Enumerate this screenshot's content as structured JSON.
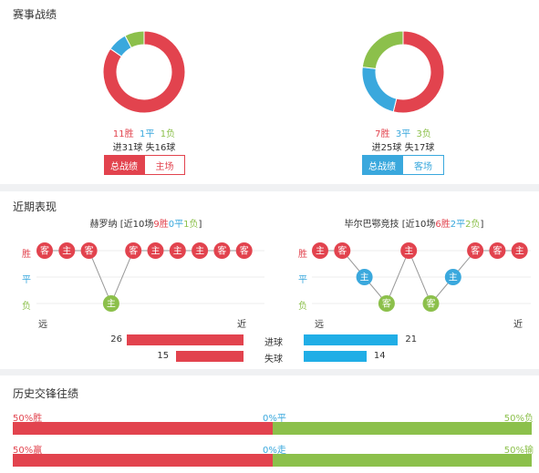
{
  "sections": {
    "record_title": "赛事战绩",
    "recent_title": "近期表现",
    "h2h_title": "历史交锋往绩"
  },
  "colors": {
    "win": "#e2434e",
    "draw": "#3aa8dd",
    "loss": "#8cc04b"
  },
  "record": {
    "home": {
      "win": "11胜",
      "draw": "1平",
      "loss": "1负",
      "win_n": 11,
      "draw_n": 1,
      "loss_n": 1,
      "goals": "进31球",
      "conceded": "失16球",
      "tab_total": "总战绩",
      "tab_venue": "主场"
    },
    "away": {
      "win": "7胜",
      "draw": "3平",
      "loss": "3负",
      "win_n": 7,
      "draw_n": 3,
      "loss_n": 3,
      "goals": "进25球",
      "conceded": "失17球",
      "tab_total": "总战绩",
      "tab_venue": "客场"
    }
  },
  "recent": {
    "row_labels": {
      "win": "胜",
      "draw": "平",
      "loss": "负"
    },
    "far": "远",
    "near": "近",
    "home": {
      "team": "赫罗纳",
      "summary_prefix": "[近10场",
      "w": "9胜",
      "d": "0平",
      "l": "1负",
      "summary_suffix": "]",
      "matches": [
        {
          "venue": "客",
          "result": "W"
        },
        {
          "venue": "主",
          "result": "W"
        },
        {
          "venue": "客",
          "result": "W"
        },
        {
          "venue": "主",
          "result": "L"
        },
        {
          "venue": "客",
          "result": "W"
        },
        {
          "venue": "主",
          "result": "W"
        },
        {
          "venue": "主",
          "result": "W"
        },
        {
          "venue": "主",
          "result": "W"
        },
        {
          "venue": "客",
          "result": "W"
        },
        {
          "venue": "客",
          "result": "W"
        }
      ],
      "goals": 26,
      "conceded": 15
    },
    "away": {
      "team": "毕尔巴鄂竞技",
      "summary_prefix": "[近10场",
      "w": "6胜",
      "d": "2平",
      "l": "2负",
      "summary_suffix": "]",
      "matches": [
        {
          "venue": "主",
          "result": "W"
        },
        {
          "venue": "客",
          "result": "W"
        },
        {
          "venue": "主",
          "result": "D"
        },
        {
          "venue": "客",
          "result": "L"
        },
        {
          "venue": "主",
          "result": "W"
        },
        {
          "venue": "客",
          "result": "L"
        },
        {
          "venue": "主",
          "result": "D"
        },
        {
          "venue": "客",
          "result": "W"
        },
        {
          "venue": "客",
          "result": "W"
        },
        {
          "venue": "主",
          "result": "W"
        }
      ],
      "goals": 21,
      "conceded": 14
    },
    "goals_label": "进球",
    "conceded_label": "失球",
    "bar_max": 26
  },
  "h2h": {
    "row1": {
      "left": "50%胜",
      "mid": "0%平",
      "right": "50%负",
      "left_pct": 50,
      "right_pct": 50
    },
    "row2": {
      "left": "50%赢",
      "mid": "0%走",
      "right": "50%输",
      "left_pct": 50,
      "right_pct": 50
    }
  }
}
